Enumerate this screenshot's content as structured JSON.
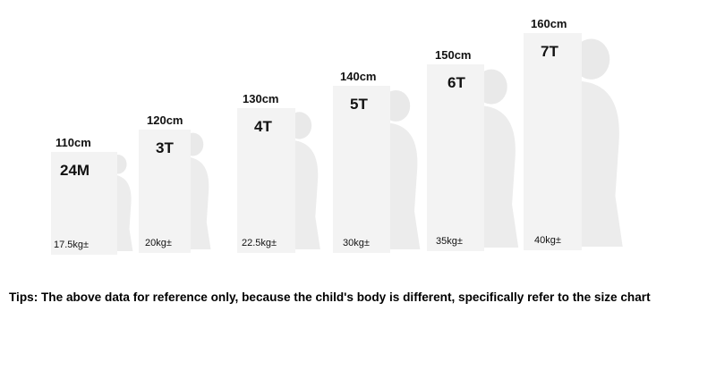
{
  "items": [
    {
      "height": "110cm",
      "size": "24M",
      "weight": "17.5kg±"
    },
    {
      "height": "120cm",
      "size": "3T",
      "weight": "20kg±"
    },
    {
      "height": "130cm",
      "size": "4T",
      "weight": "22.5kg±"
    },
    {
      "height": "140cm",
      "size": "5T",
      "weight": "30kg±"
    },
    {
      "height": "150cm",
      "size": "6T",
      "weight": "35kg±"
    },
    {
      "height": "160cm",
      "size": "7T",
      "weight": "40kg±"
    }
  ],
  "tips": "Tips: The above data for reference only, because the child's body is different, specifically refer to the size chart"
}
